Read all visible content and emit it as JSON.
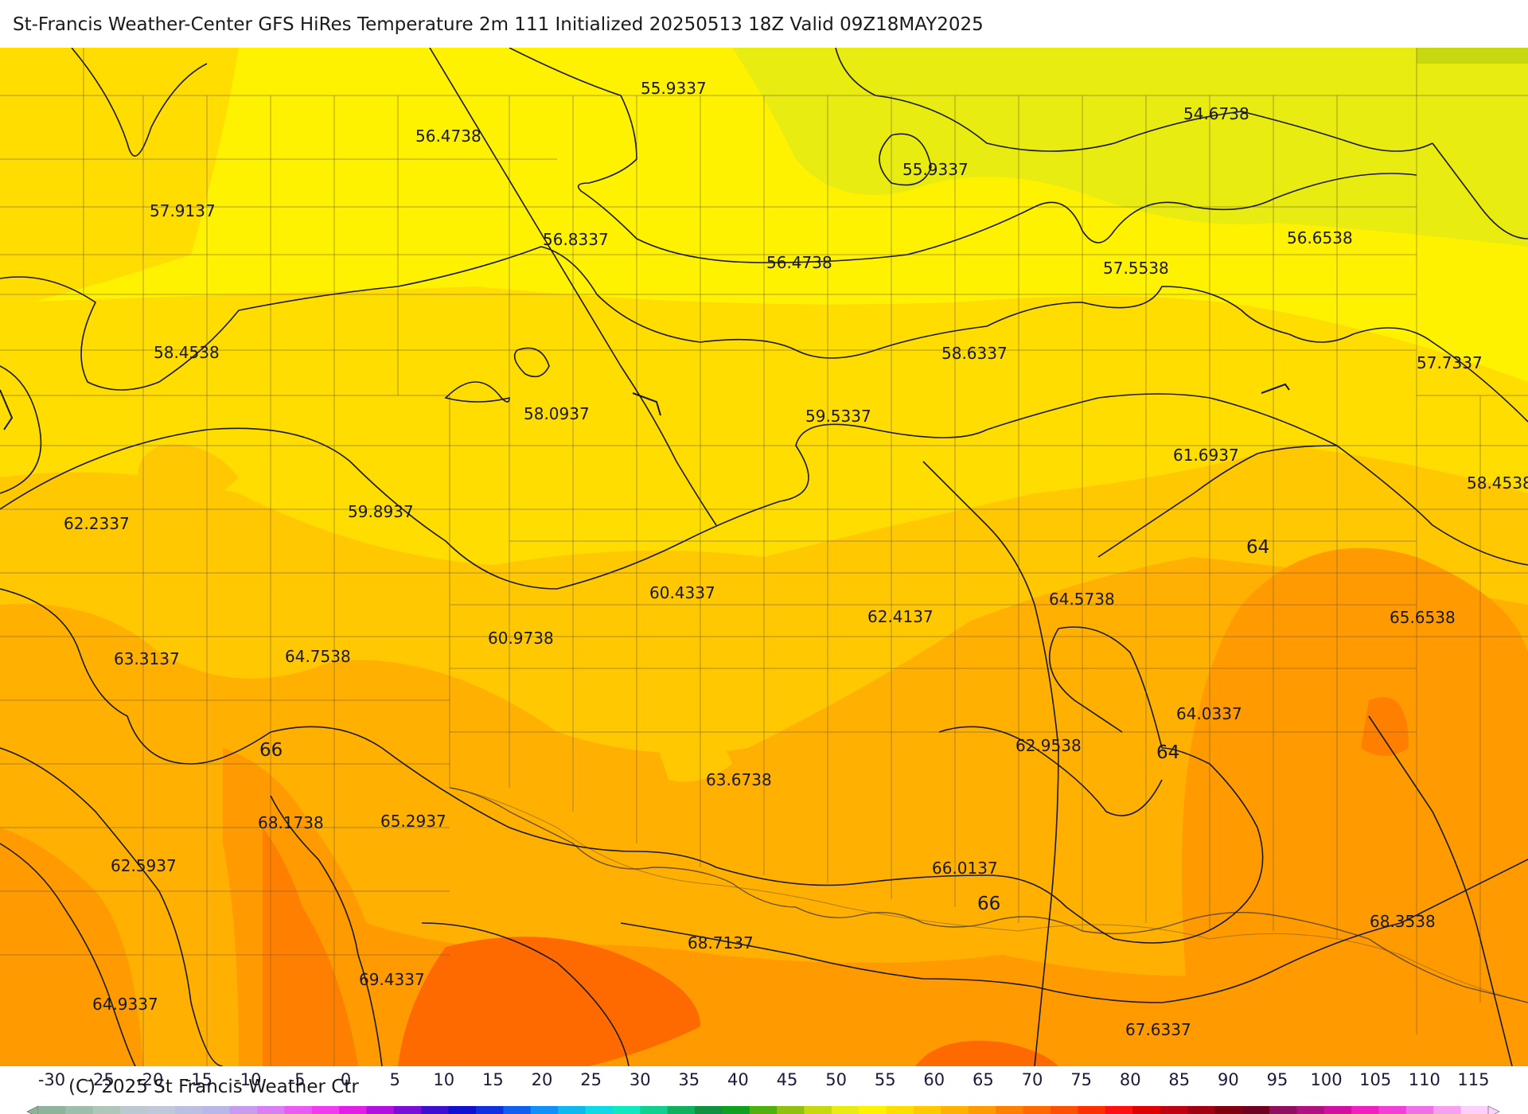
{
  "header": {
    "title": "St-Francis Weather-Center GFS HiRes Temperature 2m  111 Initialized 20250513 18Z Valid 09Z18MAY2025"
  },
  "footer": {
    "copyright": "(C) 2025 St Francis Weather Ctr"
  },
  "map": {
    "field": "Temperature 2m",
    "labels": [
      "55.9337",
      "56.4738",
      "57.9137",
      "54.6738",
      "55.9337",
      "56.8337",
      "56.4738",
      "57.5538",
      "56.6538",
      "58.4538",
      "58.6337",
      "57.7337",
      "58.0937",
      "59.5337",
      "61.6937",
      "58.4538",
      "62.2337",
      "59.8937",
      "64",
      "64.5738",
      "60.4337",
      "62.4137",
      "65.6538",
      "60.9738",
      "63.3137",
      "64.7538",
      "64.0337",
      "62.9538",
      "64",
      "66",
      "63.6738",
      "68.1738",
      "65.2937",
      "62.5937",
      "66.0137",
      "66",
      "68.3538",
      "68.7137",
      "69.4337",
      "64.9337",
      "67.6337"
    ]
  },
  "colorbar": {
    "ticks": [
      "-30",
      "-25",
      "-20",
      "-15",
      "-10",
      "-5",
      "0",
      "5",
      "10",
      "15",
      "20",
      "25",
      "30",
      "35",
      "40",
      "45",
      "50",
      "55",
      "60",
      "65",
      "70",
      "75",
      "80",
      "85",
      "90",
      "95",
      "100",
      "105",
      "110",
      "115"
    ],
    "colors": [
      "#8fb39a",
      "#9fbdab",
      "#afc7bb",
      "#bcc9d0",
      "#c2c8dc",
      "#bbc0e0",
      "#b8b8e8",
      "#c69bf0",
      "#d97ff5",
      "#e95bf5",
      "#f03cf0",
      "#e020e8",
      "#b010e0",
      "#7a10d8",
      "#3c10d0",
      "#1010d0",
      "#1030e0",
      "#1060f0",
      "#1090f8",
      "#10b8f0",
      "#10d8e8",
      "#10e8c0",
      "#10d090",
      "#10b060",
      "#109040",
      "#10a020",
      "#50b010",
      "#90c010",
      "#c8d810",
      "#e8ec10",
      "#fff200",
      "#ffdd00",
      "#ffc800",
      "#ffb000",
      "#ff9a00",
      "#ff8000",
      "#ff6a00",
      "#ff5000",
      "#ff3000",
      "#ff1010",
      "#e00000",
      "#c00010",
      "#a00010",
      "#800010",
      "#700020",
      "#901060",
      "#b01080",
      "#d010a0",
      "#f020c0",
      "#f040d8",
      "#f070e8",
      "#f8a0f0",
      "#fcd0f8"
    ]
  }
}
